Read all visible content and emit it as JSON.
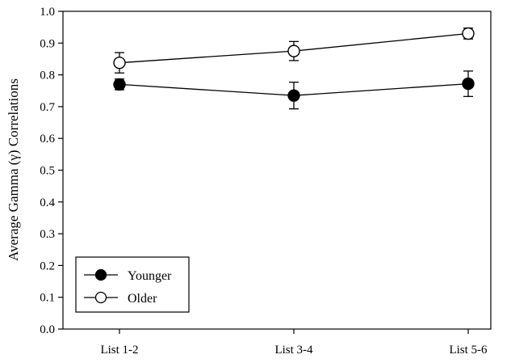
{
  "chart_data": {
    "type": "line",
    "categories": [
      "List 1-2",
      "List 3-4",
      "List 5-6"
    ],
    "ylabel": "Average Gamma (γ) Correlations",
    "xlabel": "",
    "title": "",
    "ylim": [
      0.0,
      1.0
    ],
    "yticks": [
      "0.0",
      "0.1",
      "0.2",
      "0.3",
      "0.4",
      "0.5",
      "0.6",
      "0.7",
      "0.8",
      "0.9",
      "1.0"
    ],
    "grid": false,
    "legend_position": "bottom-left",
    "series": [
      {
        "name": "Younger",
        "marker": "filled-circle",
        "values": [
          0.77,
          0.735,
          0.772
        ],
        "errors": [
          0.017,
          0.042,
          0.04
        ]
      },
      {
        "name": "Older",
        "marker": "open-circle",
        "values": [
          0.838,
          0.875,
          0.93
        ],
        "errors": [
          0.032,
          0.03,
          0.017
        ]
      }
    ]
  }
}
